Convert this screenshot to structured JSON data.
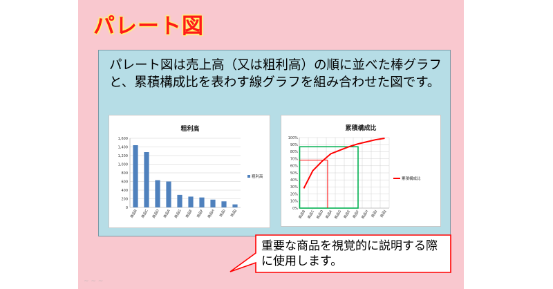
{
  "slide": {
    "title": "パレート図",
    "description": "パレート図は売上高（又は粗利高）の順に並べた棒グラフと、累積構成比を表わす線グラフを組み合わせた図です。",
    "callout": "重要な商品を視覚的に説明する際に使用します。",
    "footer_mark": "~ ~ ~",
    "colors": {
      "background": "#f9c8cf",
      "title": "#ff1a1a",
      "title_glow": "#ffff66",
      "box": "#b6dde6",
      "callout_border": "#ff0000",
      "bar": "#4f81bd",
      "line": "#ff0000",
      "highlight": "#00b050"
    }
  },
  "chart_data": [
    {
      "type": "bar",
      "title": "粗利高",
      "categories": [
        "商品B",
        "商品C",
        "商品D",
        "商品A",
        "商品G",
        "商品E",
        "商品F",
        "商品H",
        "商品I",
        "商品J"
      ],
      "series": [
        {
          "name": "粗利高",
          "values": [
            1440,
            1280,
            630,
            600,
            290,
            250,
            230,
            180,
            140,
            70
          ]
        }
      ],
      "ylim": [
        0,
        1600
      ],
      "yticks": [
        "0",
        "200",
        "400",
        "600",
        "800",
        "1,000",
        "1,200",
        "1,400",
        "1,600"
      ],
      "grid": true,
      "legend": "right"
    },
    {
      "type": "line",
      "title": "累積構成比",
      "categories": [
        "商品B",
        "商品C",
        "商品D",
        "商品A",
        "商品G",
        "商品E",
        "商品F",
        "商品H",
        "商品I",
        "商品J"
      ],
      "series": [
        {
          "name": "累積構成比",
          "values": [
            0.28,
            0.53,
            0.66,
            0.77,
            0.82,
            0.87,
            0.91,
            0.94,
            0.97,
            0.99
          ]
        }
      ],
      "ylim": [
        0,
        1
      ],
      "yticks": [
        "0%",
        "10%",
        "20%",
        "30%",
        "40%",
        "50%",
        "60%",
        "70%",
        "80%",
        "90%",
        "100%"
      ],
      "grid": true,
      "legend": "right",
      "annotations": {
        "highlight_rect_top": 0.87,
        "highlight_to_category": "商品F",
        "guide_level": 0.68,
        "guide_category": "商品A"
      }
    }
  ]
}
